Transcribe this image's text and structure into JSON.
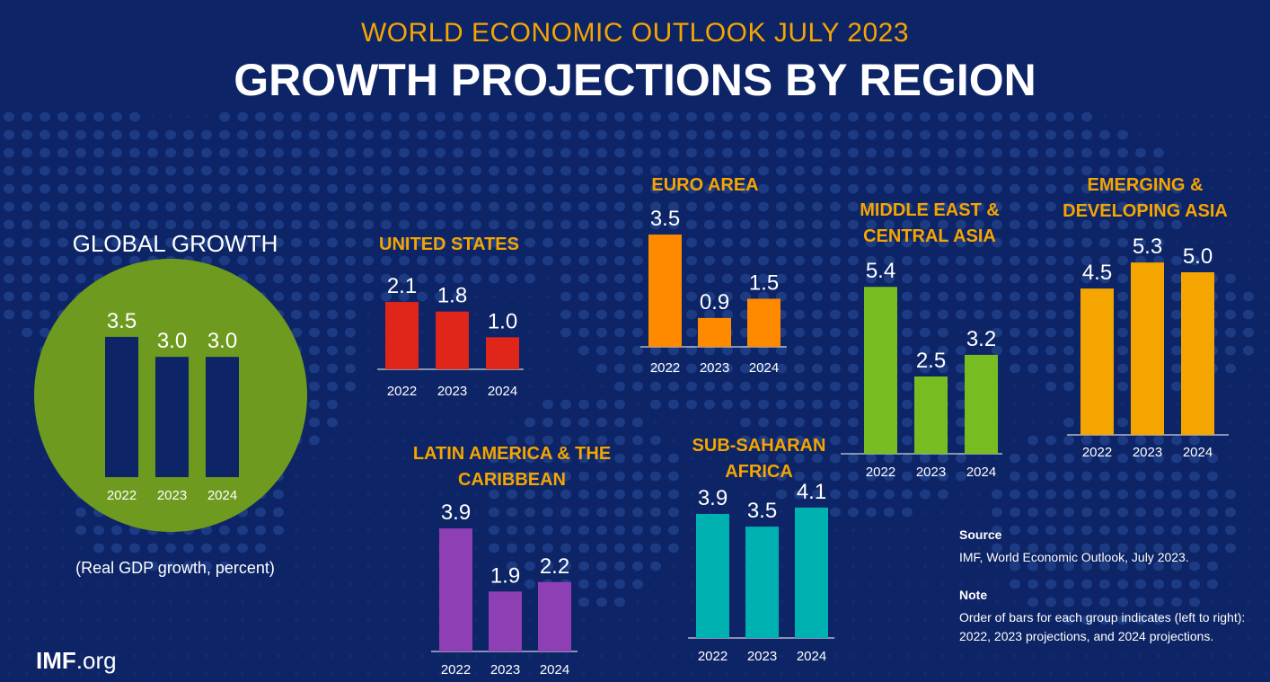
{
  "header": {
    "kicker": "WORLD ECONOMIC OUTLOOK JULY 2023",
    "title": "GROWTH PROJECTIONS BY REGION"
  },
  "colors": {
    "background": "#0d2466",
    "accent": "#f5a500",
    "global": "#6e9a1f",
    "united_states": "#e0251b",
    "euro_area": "#ff8a00",
    "middle_east": "#77bd22",
    "asia": "#f5a500",
    "latin_america": "#8e3fb3",
    "sub_saharan": "#00b1b2"
  },
  "chart_data": [
    {
      "type": "bar",
      "key": "global",
      "title_lines": [
        "GLOBAL GROWTH"
      ],
      "categories": [
        "2022",
        "2023",
        "2024"
      ],
      "values": [
        3.5,
        3.0,
        3.0
      ]
    },
    {
      "type": "bar",
      "key": "united_states",
      "title_lines": [
        "UNITED STATES"
      ],
      "categories": [
        "2022",
        "2023",
        "2024"
      ],
      "values": [
        2.1,
        1.8,
        1.0
      ]
    },
    {
      "type": "bar",
      "key": "euro_area",
      "title_lines": [
        "EURO AREA"
      ],
      "categories": [
        "2022",
        "2023",
        "2024"
      ],
      "values": [
        3.5,
        0.9,
        1.5
      ]
    },
    {
      "type": "bar",
      "key": "middle_east",
      "title_lines": [
        "MIDDLE EAST &",
        "CENTRAL ASIA"
      ],
      "categories": [
        "2022",
        "2023",
        "2024"
      ],
      "values": [
        5.4,
        2.5,
        3.2
      ]
    },
    {
      "type": "bar",
      "key": "asia",
      "title_lines": [
        "EMERGING &",
        "DEVELOPING ASIA"
      ],
      "categories": [
        "2022",
        "2023",
        "2024"
      ],
      "values": [
        4.5,
        5.3,
        5.0
      ]
    },
    {
      "type": "bar",
      "key": "latin_america",
      "title_lines": [
        "LATIN AMERICA & THE",
        "CARIBBEAN"
      ],
      "categories": [
        "2022",
        "2023",
        "2024"
      ],
      "values": [
        3.9,
        1.9,
        2.2
      ]
    },
    {
      "type": "bar",
      "key": "sub_saharan",
      "title_lines": [
        "SUB-SAHARAN",
        "AFRICA"
      ],
      "categories": [
        "2022",
        "2023",
        "2024"
      ],
      "values": [
        3.9,
        3.5,
        4.1
      ]
    }
  ],
  "unit_note": "(Real GDP growth, percent)",
  "source": {
    "heading": "Source",
    "text": "IMF, World Economic Outlook, July 2023."
  },
  "note": {
    "heading": "Note",
    "text": "Order of bars for each group indicates (left to right): 2022, 2023 projections, and 2024 projections."
  },
  "logo": {
    "bold": "IMF",
    "rest": ".org"
  }
}
